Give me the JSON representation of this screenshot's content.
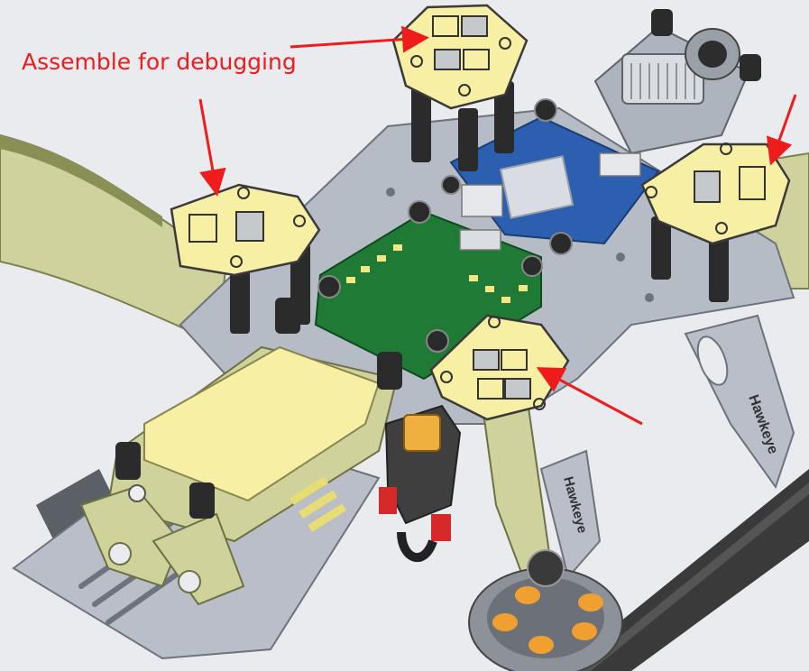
{
  "annotation": {
    "text": "Assemble for debugging",
    "color": "#ee1c1c"
  },
  "brand_mark": {
    "text": "Hawkeye"
  },
  "colors": {
    "frame_gray": "#b6bcc6",
    "pad_yellow": "#f6efa4",
    "pcb_green": "#1f7a35",
    "pcb_blue": "#2c5fb0",
    "carbon": "#2b2b2b",
    "motor_orange": "#f0a030",
    "olive_arm": "#cdd39a"
  }
}
